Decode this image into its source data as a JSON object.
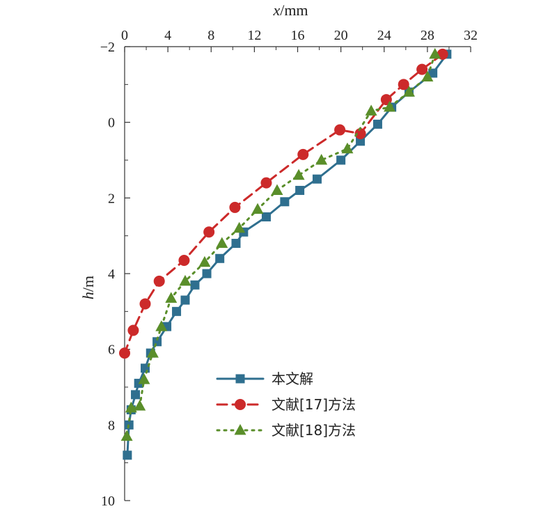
{
  "chart_data": {
    "type": "line",
    "x_axis": {
      "label_var": "x",
      "label_unit": "/mm",
      "position": "top",
      "lim": [
        0,
        32
      ],
      "ticks": [
        0,
        4,
        8,
        12,
        16,
        20,
        24,
        28,
        32
      ],
      "tick_labels": [
        "0",
        "4",
        "8",
        "12",
        "16",
        "20",
        "24",
        "28",
        "32"
      ]
    },
    "y_axis": {
      "label_var": "h",
      "label_unit": "/m",
      "inverted": true,
      "lim": [
        -2,
        10
      ],
      "ticks": [
        -2,
        0,
        2,
        4,
        6,
        8,
        10
      ],
      "tick_labels": [
        "−2",
        "0",
        "2",
        "4",
        "6",
        "8",
        "10"
      ]
    },
    "grid": false,
    "legend_position": "lower-right",
    "series": [
      {
        "name": "本文解",
        "color": "#2f6f8f",
        "marker": "square",
        "line_style": "solid",
        "x": [
          29.8,
          28.5,
          26.3,
          24.7,
          23.4,
          21.8,
          20.0,
          17.8,
          16.2,
          14.8,
          13.1,
          11.0,
          10.3,
          8.8,
          7.6,
          6.5,
          5.6,
          4.8,
          3.9,
          3.0,
          2.4,
          1.9,
          1.3,
          1.0,
          0.6,
          0.4,
          0.25
        ],
        "y": [
          -1.8,
          -1.3,
          -0.8,
          -0.4,
          0.05,
          0.5,
          1.0,
          1.5,
          1.8,
          2.1,
          2.5,
          2.9,
          3.2,
          3.6,
          4.0,
          4.3,
          4.7,
          5.0,
          5.4,
          5.8,
          6.1,
          6.5,
          6.9,
          7.2,
          7.6,
          8.0,
          8.8
        ]
      },
      {
        "name": "文献[17]方法",
        "color": "#cc2a2a",
        "marker": "circle",
        "line_style": "dashed",
        "x": [
          29.4,
          27.5,
          25.8,
          24.2,
          21.8,
          19.9,
          16.5,
          13.1,
          10.2,
          7.8,
          5.5,
          3.2,
          1.9,
          0.8,
          0.0
        ],
        "y": [
          -1.8,
          -1.4,
          -1.0,
          -0.6,
          0.3,
          0.2,
          0.85,
          1.6,
          2.25,
          2.9,
          3.65,
          4.2,
          4.8,
          5.5,
          6.1
        ]
      },
      {
        "name": "文献[18]方法",
        "color": "#5a8e2a",
        "marker": "triangle",
        "line_style": "dotted",
        "x": [
          28.7,
          28.0,
          26.3,
          24.5,
          22.8,
          20.6,
          18.2,
          16.1,
          14.1,
          12.3,
          10.6,
          9.0,
          7.4,
          5.6,
          4.3,
          3.4,
          2.6,
          1.8,
          1.4,
          0.6,
          0.2
        ],
        "y": [
          -1.8,
          -1.2,
          -0.8,
          -0.4,
          -0.3,
          0.7,
          1.0,
          1.4,
          1.8,
          2.3,
          2.8,
          3.2,
          3.7,
          4.2,
          4.65,
          5.4,
          6.1,
          6.8,
          7.5,
          7.55,
          8.3
        ]
      }
    ]
  }
}
